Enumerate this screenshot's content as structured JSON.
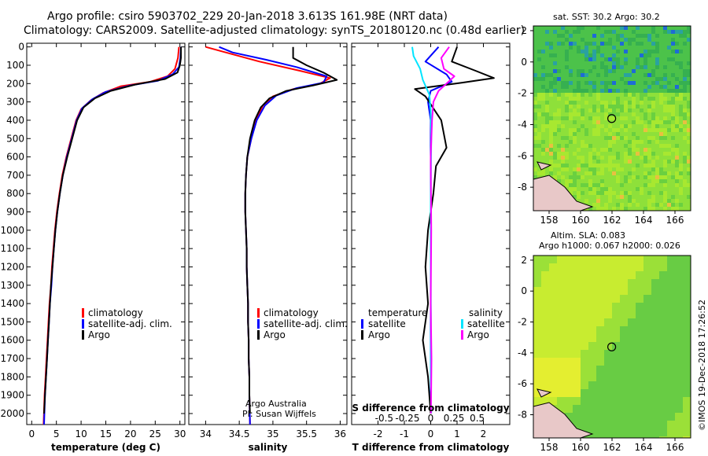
{
  "title_line1": "Argo profile: csiro 5903702_229 20-Jan-2018 3.613S 161.98E (NRT data)",
  "title_line2": "Climatology: CARS2009. Satellite-adjusted climatology: synTS_20180120.nc (0.48d earlier)",
  "map1_title": "sat. SST: 30.2 Argo: 30.2",
  "map2_title1": "Altim. SLA: 0.083",
  "map2_title2": "Argo h1000: 0.067 h2000: 0.026",
  "credit1": "Argo Australia",
  "credit2": "PI: Susan Wijffels",
  "imos": "©IMOS 19-Dec-2018 17:26:52",
  "depth_ticks": [
    0,
    100,
    200,
    300,
    400,
    500,
    600,
    700,
    800,
    900,
    1000,
    1100,
    1200,
    1300,
    1400,
    1500,
    1600,
    1700,
    1800,
    1900,
    2000
  ],
  "legend_temp": [
    "climatology",
    "satellite-adj. clim.",
    "Argo"
  ],
  "legend_sal": [
    "climatology",
    "satellite-adj. clim.",
    "Argo"
  ],
  "legend_diff": {
    "temp_head": "temperature",
    "sal_head": "salinity",
    "sat": "satellite",
    "argo": "Argo"
  },
  "colors": {
    "climatology": "#ff0000",
    "satellite": "#0000ff",
    "argo": "#000000",
    "s_sat": "#00e5ff",
    "s_argo": "#ff00ff"
  },
  "chart_data": [
    {
      "type": "line",
      "xlabel": "temperature (deg C)",
      "xlim": [
        -1,
        31
      ],
      "xticks": [
        0,
        5,
        10,
        15,
        20,
        25,
        30
      ],
      "ylim": [
        2060,
        -20
      ],
      "series": [
        {
          "name": "climatology",
          "color": "#ff0000",
          "points": [
            [
              29.8,
              0
            ],
            [
              29.6,
              60
            ],
            [
              29.0,
              120
            ],
            [
              27.5,
              160
            ],
            [
              24,
              190
            ],
            [
              18,
              215
            ],
            [
              14.5,
              250
            ],
            [
              12,
              290
            ],
            [
              10,
              340
            ],
            [
              9,
              400
            ],
            [
              8,
              500
            ],
            [
              7,
              600
            ],
            [
              6.2,
              700
            ],
            [
              5.6,
              800
            ],
            [
              5.1,
              900
            ],
            [
              4.7,
              1000
            ],
            [
              4.4,
              1100
            ],
            [
              4.1,
              1200
            ],
            [
              3.9,
              1300
            ],
            [
              3.6,
              1400
            ],
            [
              3.4,
              1500
            ],
            [
              3.2,
              1600
            ],
            [
              3.0,
              1700
            ],
            [
              2.8,
              1800
            ],
            [
              2.6,
              1900
            ],
            [
              2.4,
              2060
            ]
          ]
        },
        {
          "name": "satellite-adj. clim.",
          "color": "#0000ff",
          "points": [
            [
              30.2,
              0
            ],
            [
              30.1,
              60
            ],
            [
              29.8,
              110
            ],
            [
              28.5,
              150
            ],
            [
              25.5,
              185
            ],
            [
              20,
              210
            ],
            [
              15,
              245
            ],
            [
              12.3,
              285
            ],
            [
              10.2,
              335
            ],
            [
              9.1,
              400
            ],
            [
              8.1,
              500
            ],
            [
              7.1,
              600
            ],
            [
              6.3,
              700
            ],
            [
              5.7,
              800
            ],
            [
              5.2,
              900
            ],
            [
              4.8,
              1000
            ],
            [
              4.5,
              1100
            ],
            [
              4.2,
              1200
            ],
            [
              4.0,
              1300
            ],
            [
              3.7,
              1400
            ],
            [
              3.5,
              1500
            ],
            [
              3.3,
              1600
            ],
            [
              3.1,
              1700
            ],
            [
              2.9,
              1800
            ],
            [
              2.7,
              1900
            ],
            [
              2.5,
              2060
            ]
          ]
        },
        {
          "name": "Argo",
          "color": "#000000",
          "points": [
            [
              30.2,
              0
            ],
            [
              30.2,
              60
            ],
            [
              30.0,
              100
            ],
            [
              29.5,
              140
            ],
            [
              27,
              175
            ],
            [
              21,
              205
            ],
            [
              16,
              240
            ],
            [
              12.8,
              280
            ],
            [
              10.5,
              330
            ],
            [
              9.2,
              400
            ],
            [
              8.2,
              500
            ],
            [
              7.2,
              600
            ],
            [
              6.3,
              700
            ],
            [
              5.7,
              800
            ],
            [
              5.2,
              900
            ],
            [
              4.8,
              1000
            ],
            [
              4.5,
              1100
            ],
            [
              4.2,
              1200
            ],
            [
              3.9,
              1300
            ],
            [
              3.7,
              1400
            ],
            [
              3.5,
              1500
            ],
            [
              3.3,
              1600
            ],
            [
              3.1,
              1700
            ],
            [
              2.9,
              1800
            ],
            [
              2.7,
              1900
            ],
            [
              2.5,
              2000
            ]
          ]
        }
      ]
    },
    {
      "type": "line",
      "xlabel": "salinity",
      "xlim": [
        33.75,
        36.1
      ],
      "xticks": [
        34,
        34.5,
        35,
        35.5,
        36
      ],
      "xticklabels": [
        "34",
        "34.5",
        "35",
        "35.5",
        "36"
      ],
      "ylim": [
        2060,
        -20
      ],
      "series": [
        {
          "name": "climatology",
          "color": "#ff0000",
          "points": [
            [
              34.0,
              0
            ],
            [
              34.3,
              30
            ],
            [
              34.8,
              80
            ],
            [
              35.4,
              130
            ],
            [
              35.85,
              170
            ],
            [
              35.7,
              200
            ],
            [
              35.3,
              230
            ],
            [
              35.0,
              270
            ],
            [
              34.85,
              320
            ],
            [
              34.75,
              400
            ],
            [
              34.68,
              500
            ],
            [
              34.62,
              600
            ],
            [
              34.6,
              700
            ],
            [
              34.59,
              800
            ],
            [
              34.59,
              900
            ],
            [
              34.6,
              1000
            ],
            [
              34.61,
              1100
            ],
            [
              34.61,
              1200
            ],
            [
              34.62,
              1300
            ],
            [
              34.63,
              1400
            ],
            [
              34.63,
              1500
            ],
            [
              34.64,
              1600
            ],
            [
              34.64,
              1700
            ],
            [
              34.65,
              1800
            ],
            [
              34.65,
              1900
            ],
            [
              34.66,
              2060
            ]
          ]
        },
        {
          "name": "satellite-adj. clim.",
          "color": "#0000ff",
          "points": [
            [
              34.2,
              0
            ],
            [
              34.4,
              30
            ],
            [
              34.9,
              70
            ],
            [
              35.35,
              110
            ],
            [
              35.8,
              160
            ],
            [
              35.75,
              195
            ],
            [
              35.35,
              225
            ],
            [
              35.05,
              265
            ],
            [
              34.88,
              320
            ],
            [
              34.76,
              400
            ],
            [
              34.68,
              500
            ],
            [
              34.62,
              600
            ],
            [
              34.6,
              700
            ],
            [
              34.59,
              800
            ],
            [
              34.59,
              900
            ],
            [
              34.6,
              1000
            ],
            [
              34.61,
              1100
            ],
            [
              34.61,
              1200
            ],
            [
              34.62,
              1300
            ],
            [
              34.63,
              1400
            ],
            [
              34.63,
              1500
            ],
            [
              34.64,
              1600
            ],
            [
              34.64,
              1700
            ],
            [
              34.65,
              1800
            ],
            [
              34.65,
              1900
            ],
            [
              34.66,
              2060
            ]
          ]
        },
        {
          "name": "Argo",
          "color": "#000000",
          "points": [
            [
              35.3,
              0
            ],
            [
              35.3,
              60
            ],
            [
              35.5,
              100
            ],
            [
              35.75,
              140
            ],
            [
              35.95,
              180
            ],
            [
              35.6,
              210
            ],
            [
              35.2,
              240
            ],
            [
              34.95,
              280
            ],
            [
              34.82,
              330
            ],
            [
              34.73,
              400
            ],
            [
              34.66,
              500
            ],
            [
              34.62,
              600
            ],
            [
              34.6,
              700
            ],
            [
              34.59,
              800
            ],
            [
              34.59,
              900
            ],
            [
              34.6,
              1000
            ],
            [
              34.61,
              1100
            ],
            [
              34.61,
              1200
            ],
            [
              34.62,
              1300
            ],
            [
              34.63,
              1400
            ],
            [
              34.63,
              1500
            ],
            [
              34.64,
              1600
            ],
            [
              34.64,
              1700
            ],
            [
              34.65,
              1800
            ],
            [
              34.65,
              1900
            ],
            [
              34.66,
              2000
            ]
          ]
        }
      ]
    },
    {
      "type": "line",
      "xlabel": "T difference from climatology",
      "xlabel2": "S difference from climatology",
      "xlim": [
        -3,
        3
      ],
      "xticks": [
        -2,
        -1,
        0,
        1,
        2
      ],
      "sticks": [
        -0.5,
        -0.25,
        0,
        0.25,
        0.5
      ],
      "sticklabels": [
        "-0.5",
        "-0.25",
        "0",
        "0.25",
        "0.5"
      ],
      "ylim": [
        2060,
        -20
      ],
      "series": [
        {
          "name": "T satellite",
          "color": "#0000ff",
          "points": [
            [
              0.3,
              0
            ],
            [
              -0.2,
              80
            ],
            [
              0.6,
              150
            ],
            [
              0.8,
              190
            ],
            [
              0.0,
              240
            ],
            [
              -0.1,
              300
            ],
            [
              0.0,
              400
            ],
            [
              0.0,
              600
            ],
            [
              0.0,
              1000
            ],
            [
              0.0,
              1500
            ],
            [
              0.0,
              2000
            ]
          ]
        },
        {
          "name": "T Argo",
          "color": "#000000",
          "points": [
            [
              1.0,
              0
            ],
            [
              0.8,
              80
            ],
            [
              1.7,
              130
            ],
            [
              2.4,
              170
            ],
            [
              1.2,
              195
            ],
            [
              -0.6,
              230
            ],
            [
              -0.2,
              270
            ],
            [
              0.4,
              400
            ],
            [
              0.6,
              550
            ],
            [
              0.2,
              650
            ],
            [
              0.1,
              800
            ],
            [
              -0.1,
              1000
            ],
            [
              -0.2,
              1200
            ],
            [
              -0.1,
              1400
            ],
            [
              -0.3,
              1600
            ],
            [
              -0.1,
              1800
            ],
            [
              0.0,
              2000
            ]
          ]
        },
        {
          "name": "S satellite",
          "color": "#00e5ff",
          "points": [
            [
              -0.7,
              0
            ],
            [
              -0.65,
              50
            ],
            [
              -0.4,
              120
            ],
            [
              -0.3,
              180
            ],
            [
              -0.05,
              260
            ],
            [
              0.0,
              350
            ],
            [
              0.02,
              500
            ],
            [
              0.0,
              800
            ],
            [
              0.0,
              1200
            ],
            [
              0.01,
              1500
            ],
            [
              0.0,
              1800
            ],
            [
              0.02,
              2000
            ]
          ]
        },
        {
          "name": "S Argo",
          "color": "#ff00ff",
          "points": [
            [
              0.7,
              0
            ],
            [
              0.4,
              60
            ],
            [
              0.5,
              120
            ],
            [
              0.9,
              160
            ],
            [
              0.6,
              200
            ],
            [
              0.3,
              240
            ],
            [
              0.1,
              300
            ],
            [
              0.05,
              400
            ],
            [
              0.0,
              600
            ],
            [
              0.02,
              1000
            ],
            [
              0.0,
              1400
            ],
            [
              0.03,
              1700
            ],
            [
              0.01,
              2000
            ]
          ]
        }
      ]
    },
    {
      "type": "heatmap",
      "xlim": [
        157,
        167
      ],
      "ylim": [
        -9.5,
        2.3
      ],
      "xticks": [
        158,
        160,
        162,
        164,
        166
      ],
      "yticks": [
        2,
        0,
        -2,
        -4,
        -6,
        -8
      ],
      "argo_lon": 161.98,
      "argo_lat": -3.613
    },
    {
      "type": "heatmap",
      "xlim": [
        157,
        167
      ],
      "ylim": [
        -9.5,
        2.3
      ],
      "xticks": [
        158,
        160,
        162,
        164,
        166
      ],
      "yticks": [
        2,
        0,
        -2,
        -4,
        -6,
        -8
      ],
      "argo_lon": 161.98,
      "argo_lat": -3.613
    }
  ]
}
